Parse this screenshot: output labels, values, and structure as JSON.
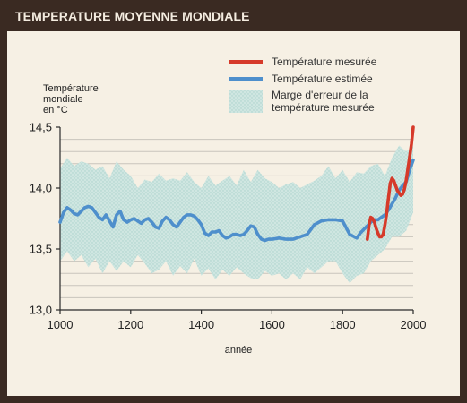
{
  "chart_data": {
    "type": "line",
    "title": "TEMPERATURE MOYENNE MONDIALE",
    "ylabel_lines": [
      "Température",
      "mondiale",
      "en °C"
    ],
    "xlabel": "année",
    "xlim": [
      1000,
      2000
    ],
    "ylim": [
      13.0,
      14.5
    ],
    "x_ticks": [
      "1000",
      "1200",
      "1400",
      "1600",
      "1800",
      "2000"
    ],
    "y_ticks": [
      "14,5",
      "14,0",
      "13,5",
      "13,0"
    ],
    "legend": {
      "measured": "Température mesurée",
      "estimated": "Température estimée",
      "error_line1": "Marge d'erreur de la",
      "error_line2": "température mesurée"
    },
    "colors": {
      "measured": "#d63a2a",
      "estimated": "#4e8fcc",
      "band": "#c9e3df",
      "axis": "#2a2a2a",
      "grid": "#c9c4bc"
    },
    "series": [
      {
        "name": "Température estimée",
        "x": [
          1000,
          1010,
          1020,
          1030,
          1040,
          1050,
          1060,
          1070,
          1080,
          1090,
          1100,
          1110,
          1120,
          1130,
          1140,
          1150,
          1160,
          1170,
          1180,
          1190,
          1200,
          1210,
          1220,
          1230,
          1240,
          1250,
          1260,
          1270,
          1280,
          1290,
          1300,
          1310,
          1320,
          1330,
          1340,
          1350,
          1360,
          1370,
          1380,
          1390,
          1400,
          1410,
          1420,
          1430,
          1440,
          1450,
          1460,
          1470,
          1480,
          1490,
          1500,
          1510,
          1520,
          1530,
          1540,
          1550,
          1560,
          1570,
          1580,
          1590,
          1600,
          1620,
          1640,
          1660,
          1680,
          1700,
          1720,
          1740,
          1760,
          1780,
          1800,
          1820,
          1840,
          1850,
          1860,
          1870,
          1880,
          1890,
          1900,
          1910,
          1920,
          1930,
          1940,
          1950,
          1960,
          1970,
          1980,
          1990,
          2000
        ],
        "values": [
          13.72,
          13.8,
          13.84,
          13.82,
          13.79,
          13.78,
          13.81,
          13.84,
          13.85,
          13.84,
          13.8,
          13.76,
          13.74,
          13.78,
          13.73,
          13.68,
          13.78,
          13.81,
          13.74,
          13.72,
          13.74,
          13.75,
          13.73,
          13.71,
          13.74,
          13.75,
          13.72,
          13.68,
          13.67,
          13.73,
          13.76,
          13.74,
          13.7,
          13.68,
          13.72,
          13.76,
          13.78,
          13.78,
          13.77,
          13.74,
          13.7,
          13.63,
          13.61,
          13.64,
          13.64,
          13.65,
          13.61,
          13.59,
          13.6,
          13.62,
          13.62,
          13.61,
          13.62,
          13.65,
          13.69,
          13.68,
          13.62,
          13.58,
          13.57,
          13.58,
          13.58,
          13.59,
          13.58,
          13.58,
          13.6,
          13.62,
          13.7,
          13.73,
          13.74,
          13.74,
          13.73,
          13.62,
          13.59,
          13.63,
          13.66,
          13.69,
          13.72,
          13.74,
          13.74,
          13.76,
          13.78,
          13.82,
          13.87,
          13.92,
          13.98,
          14.02,
          14.05,
          14.15,
          14.23
        ]
      },
      {
        "name": "Température mesurée",
        "x": [
          1870,
          1875,
          1880,
          1885,
          1890,
          1895,
          1900,
          1905,
          1910,
          1915,
          1920,
          1925,
          1930,
          1935,
          1940,
          1945,
          1950,
          1955,
          1960,
          1965,
          1970,
          1975,
          1980,
          1985,
          1990,
          1995,
          2000
        ],
        "values": [
          13.58,
          13.7,
          13.76,
          13.75,
          13.72,
          13.67,
          13.63,
          13.6,
          13.6,
          13.62,
          13.7,
          13.8,
          13.92,
          14.04,
          14.08,
          14.06,
          14.02,
          13.98,
          13.96,
          13.94,
          13.95,
          13.99,
          14.06,
          14.16,
          14.26,
          14.36,
          14.5
        ]
      }
    ],
    "error_band": {
      "x": [
        1000,
        1020,
        1040,
        1060,
        1080,
        1100,
        1120,
        1140,
        1160,
        1180,
        1200,
        1220,
        1240,
        1260,
        1280,
        1300,
        1320,
        1340,
        1360,
        1380,
        1400,
        1420,
        1440,
        1460,
        1480,
        1500,
        1520,
        1540,
        1560,
        1580,
        1600,
        1620,
        1640,
        1660,
        1680,
        1700,
        1720,
        1740,
        1760,
        1780,
        1800,
        1820,
        1840,
        1860,
        1880,
        1900,
        1920,
        1940,
        1960,
        1980,
        2000
      ],
      "upper": [
        14.16,
        14.25,
        14.18,
        14.22,
        14.2,
        14.15,
        14.18,
        14.08,
        14.22,
        14.15,
        14.1,
        14.0,
        14.07,
        14.05,
        14.12,
        14.06,
        14.08,
        14.06,
        14.13,
        14.05,
        14.0,
        14.1,
        14.02,
        14.06,
        14.1,
        14.02,
        14.15,
        14.05,
        14.15,
        14.08,
        14.05,
        14.0,
        14.03,
        14.05,
        14.0,
        14.03,
        14.06,
        14.1,
        14.18,
        14.08,
        14.15,
        14.05,
        14.13,
        14.12,
        14.18,
        14.2,
        14.1,
        14.25,
        14.35,
        14.3,
        14.35
      ],
      "lower": [
        13.4,
        13.48,
        13.4,
        13.45,
        13.35,
        13.42,
        13.3,
        13.4,
        13.32,
        13.4,
        13.35,
        13.45,
        13.38,
        13.3,
        13.33,
        13.4,
        13.28,
        13.36,
        13.3,
        13.42,
        13.28,
        13.34,
        13.25,
        13.33,
        13.28,
        13.35,
        13.3,
        13.26,
        13.25,
        13.32,
        13.28,
        13.3,
        13.25,
        13.3,
        13.25,
        13.35,
        13.3,
        13.35,
        13.4,
        13.4,
        13.3,
        13.22,
        13.28,
        13.3,
        13.4,
        13.45,
        13.5,
        13.6,
        13.6,
        13.65,
        13.8
      ]
    }
  }
}
